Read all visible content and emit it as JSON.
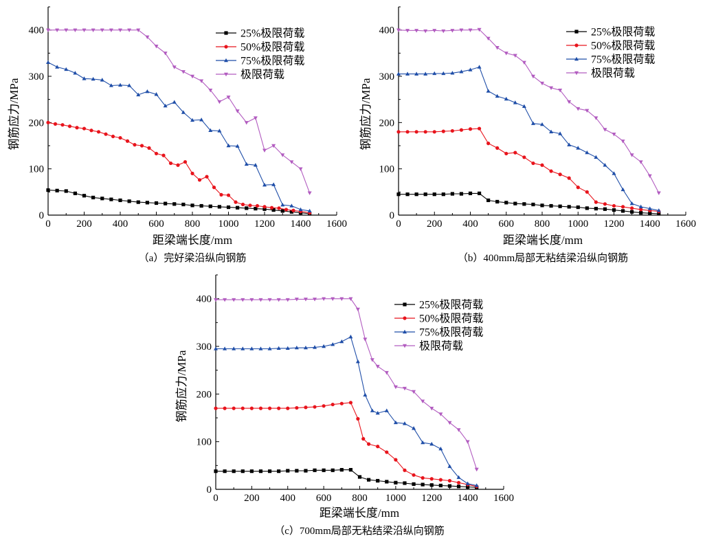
{
  "colors": {
    "s25": "#000000",
    "s50": "#e8141c",
    "s75": "#1f4ea8",
    "sult": "#b25cc0"
  },
  "chart_data": [
    {
      "type": "line",
      "caption": "（a）完好梁沿纵向钢筋",
      "xlabel": "距梁端长度/mm",
      "ylabel": "钢筋应力/MPa",
      "xlim": [
        0,
        1600
      ],
      "ylim": [
        0,
        450
      ],
      "xticks": [
        0,
        200,
        400,
        600,
        800,
        1000,
        1200,
        1400,
        1600
      ],
      "yticks": [
        0,
        100,
        200,
        300,
        400
      ],
      "legend_position": "top-right",
      "series": [
        {
          "name": "25%极限荷载",
          "marker": "square",
          "color_key": "s25",
          "x": [
            0,
            50,
            100,
            150,
            200,
            250,
            300,
            350,
            400,
            450,
            500,
            550,
            600,
            650,
            700,
            750,
            800,
            850,
            900,
            950,
            1000,
            1050,
            1100,
            1150,
            1200,
            1250,
            1300,
            1350,
            1400,
            1450
          ],
          "y": [
            54,
            53,
            52,
            47,
            42,
            38,
            36,
            34,
            32,
            30,
            28,
            27,
            26,
            25,
            24,
            23,
            21,
            20,
            19,
            18,
            17,
            16,
            15,
            14,
            13,
            11,
            9,
            7,
            5,
            3
          ]
        },
        {
          "name": "50%极限荷载",
          "marker": "circle",
          "color_key": "s50",
          "x": [
            0,
            40,
            80,
            120,
            160,
            200,
            240,
            280,
            320,
            360,
            400,
            440,
            480,
            520,
            560,
            600,
            640,
            680,
            720,
            760,
            800,
            840,
            880,
            920,
            960,
            1000,
            1040,
            1080,
            1120,
            1160,
            1200,
            1240,
            1280,
            1320,
            1360,
            1400,
            1450
          ],
          "y": [
            200,
            197,
            195,
            192,
            189,
            187,
            183,
            180,
            175,
            170,
            167,
            160,
            152,
            150,
            145,
            133,
            129,
            112,
            108,
            115,
            90,
            76,
            83,
            60,
            44,
            43,
            28,
            23,
            21,
            20,
            18,
            16,
            15,
            12,
            10,
            8,
            5
          ]
        },
        {
          "name": "75%极限荷载",
          "marker": "triangle",
          "color_key": "s75",
          "x": [
            0,
            50,
            100,
            150,
            200,
            250,
            300,
            350,
            400,
            450,
            500,
            550,
            600,
            650,
            700,
            750,
            800,
            850,
            900,
            950,
            1000,
            1050,
            1100,
            1150,
            1200,
            1250,
            1300,
            1350,
            1400,
            1450
          ],
          "y": [
            330,
            320,
            315,
            307,
            295,
            294,
            292,
            280,
            281,
            280,
            260,
            267,
            261,
            236,
            244,
            222,
            205,
            206,
            183,
            182,
            150,
            149,
            110,
            108,
            65,
            66,
            22,
            20,
            12,
            9
          ]
        },
        {
          "name": "极限荷载",
          "marker": "inverted-triangle",
          "color_key": "sult",
          "x": [
            0,
            50,
            100,
            150,
            200,
            250,
            300,
            350,
            400,
            450,
            500,
            550,
            600,
            650,
            700,
            750,
            800,
            850,
            900,
            950,
            1000,
            1050,
            1100,
            1150,
            1200,
            1250,
            1300,
            1350,
            1400,
            1450
          ],
          "y": [
            400,
            400,
            400,
            400,
            400,
            400,
            400,
            400,
            400,
            400,
            400,
            385,
            365,
            350,
            320,
            310,
            300,
            290,
            270,
            245,
            255,
            225,
            200,
            210,
            140,
            150,
            130,
            115,
            100,
            48
          ]
        }
      ]
    },
    {
      "type": "line",
      "caption": "（b）400mm局部无粘结梁沿纵向钢筋",
      "xlabel": "距梁端长度/mm",
      "ylabel": "钢筋应力/MPa",
      "xlim": [
        0,
        1600
      ],
      "ylim": [
        0,
        450
      ],
      "xticks": [
        0,
        200,
        400,
        600,
        800,
        1000,
        1200,
        1400,
        1600
      ],
      "yticks": [
        0,
        100,
        200,
        300,
        400
      ],
      "legend_position": "top-right",
      "series": [
        {
          "name": "25%极限荷载",
          "marker": "square",
          "color_key": "s25",
          "x": [
            0,
            50,
            100,
            150,
            200,
            250,
            300,
            350,
            400,
            450,
            500,
            550,
            600,
            650,
            700,
            750,
            800,
            850,
            900,
            950,
            1000,
            1050,
            1100,
            1150,
            1200,
            1250,
            1300,
            1350,
            1400,
            1450
          ],
          "y": [
            45,
            45,
            45,
            45,
            45,
            45,
            46,
            46,
            47,
            47,
            32,
            29,
            27,
            25,
            24,
            23,
            21,
            20,
            19,
            18,
            17,
            15,
            14,
            13,
            11,
            9,
            7,
            5,
            4,
            3
          ]
        },
        {
          "name": "50%极限荷载",
          "marker": "circle",
          "color_key": "s50",
          "x": [
            0,
            50,
            100,
            150,
            200,
            250,
            300,
            350,
            400,
            450,
            500,
            550,
            600,
            650,
            700,
            750,
            800,
            850,
            900,
            950,
            1000,
            1050,
            1100,
            1150,
            1200,
            1250,
            1300,
            1350,
            1400,
            1450
          ],
          "y": [
            180,
            180,
            180,
            180,
            180,
            181,
            182,
            184,
            186,
            187,
            155,
            145,
            133,
            135,
            125,
            112,
            108,
            95,
            88,
            80,
            60,
            50,
            28,
            24,
            20,
            18,
            15,
            12,
            10,
            8
          ]
        },
        {
          "name": "75%极限荷载",
          "marker": "triangle",
          "color_key": "s75",
          "x": [
            0,
            50,
            100,
            150,
            200,
            250,
            300,
            350,
            400,
            450,
            500,
            550,
            600,
            650,
            700,
            750,
            800,
            850,
            900,
            950,
            1000,
            1050,
            1100,
            1150,
            1200,
            1250,
            1300,
            1350,
            1400,
            1450
          ],
          "y": [
            305,
            305,
            305,
            305,
            306,
            306,
            307,
            310,
            314,
            320,
            268,
            257,
            251,
            243,
            235,
            198,
            196,
            180,
            176,
            152,
            145,
            135,
            125,
            108,
            90,
            55,
            25,
            18,
            14,
            10
          ]
        },
        {
          "name": "极限荷载",
          "marker": "inverted-triangle",
          "color_key": "sult",
          "x": [
            0,
            50,
            100,
            150,
            200,
            250,
            300,
            350,
            400,
            450,
            500,
            550,
            600,
            650,
            700,
            750,
            800,
            850,
            900,
            950,
            1000,
            1050,
            1100,
            1150,
            1200,
            1250,
            1300,
            1350,
            1400,
            1450
          ],
          "y": [
            400,
            399,
            399,
            398,
            399,
            398,
            399,
            400,
            400,
            401,
            382,
            362,
            350,
            345,
            330,
            300,
            285,
            275,
            270,
            245,
            230,
            226,
            210,
            185,
            175,
            160,
            130,
            115,
            85,
            48
          ]
        }
      ]
    },
    {
      "type": "line",
      "caption": "（c）700mm局部无粘结梁沿纵向钢筋",
      "xlabel": "距梁端长度/mm",
      "ylabel": "钢筋应力/MPa",
      "xlim": [
        0,
        1600
      ],
      "ylim": [
        0,
        450
      ],
      "xticks": [
        0,
        200,
        400,
        600,
        800,
        1000,
        1200,
        1400,
        1600
      ],
      "yticks": [
        0,
        100,
        200,
        300,
        400
      ],
      "legend_position": "top-right",
      "series": [
        {
          "name": "25%极限荷载",
          "marker": "square",
          "color_key": "s25",
          "x": [
            0,
            50,
            100,
            150,
            200,
            250,
            300,
            350,
            400,
            450,
            500,
            550,
            600,
            650,
            700,
            750,
            800,
            850,
            900,
            950,
            1000,
            1050,
            1100,
            1150,
            1200,
            1250,
            1300,
            1350,
            1400,
            1450
          ],
          "y": [
            38,
            38,
            38,
            38,
            38,
            38,
            38,
            38,
            39,
            39,
            39,
            40,
            40,
            40,
            41,
            41,
            26,
            20,
            18,
            16,
            14,
            13,
            11,
            10,
            9,
            8,
            7,
            6,
            5,
            4
          ]
        },
        {
          "name": "50%极限荷载",
          "marker": "circle",
          "color_key": "s50",
          "x": [
            0,
            50,
            100,
            150,
            200,
            250,
            300,
            350,
            400,
            450,
            500,
            550,
            600,
            650,
            700,
            750,
            790,
            820,
            850,
            900,
            950,
            1000,
            1050,
            1100,
            1150,
            1200,
            1250,
            1300,
            1350,
            1400,
            1450
          ],
          "y": [
            170,
            170,
            170,
            170,
            170,
            170,
            170,
            170,
            170,
            171,
            172,
            173,
            175,
            178,
            180,
            182,
            148,
            106,
            95,
            90,
            78,
            62,
            40,
            30,
            24,
            22,
            20,
            18,
            14,
            10,
            6
          ]
        },
        {
          "name": "75%极限荷载",
          "marker": "triangle",
          "color_key": "s75",
          "x": [
            0,
            50,
            100,
            150,
            200,
            250,
            300,
            350,
            400,
            450,
            500,
            550,
            600,
            650,
            700,
            750,
            790,
            830,
            870,
            900,
            950,
            1000,
            1050,
            1100,
            1150,
            1200,
            1250,
            1300,
            1350,
            1400,
            1450
          ],
          "y": [
            295,
            295,
            295,
            295,
            295,
            295,
            295,
            296,
            296,
            297,
            297,
            298,
            300,
            304,
            310,
            320,
            268,
            198,
            165,
            160,
            165,
            140,
            138,
            128,
            98,
            95,
            85,
            48,
            25,
            12,
            8
          ]
        },
        {
          "name": "极限荷载",
          "marker": "inverted-triangle",
          "color_key": "sult",
          "x": [
            0,
            50,
            100,
            150,
            200,
            250,
            300,
            350,
            400,
            450,
            500,
            550,
            600,
            650,
            700,
            750,
            790,
            830,
            870,
            900,
            950,
            1000,
            1050,
            1100,
            1150,
            1200,
            1250,
            1300,
            1350,
            1400,
            1450
          ],
          "y": [
            398,
            398,
            398,
            398,
            398,
            398,
            398,
            398,
            398,
            399,
            399,
            399,
            400,
            400,
            400,
            400,
            378,
            315,
            272,
            258,
            245,
            215,
            212,
            205,
            185,
            170,
            158,
            140,
            125,
            100,
            42
          ]
        }
      ]
    }
  ]
}
